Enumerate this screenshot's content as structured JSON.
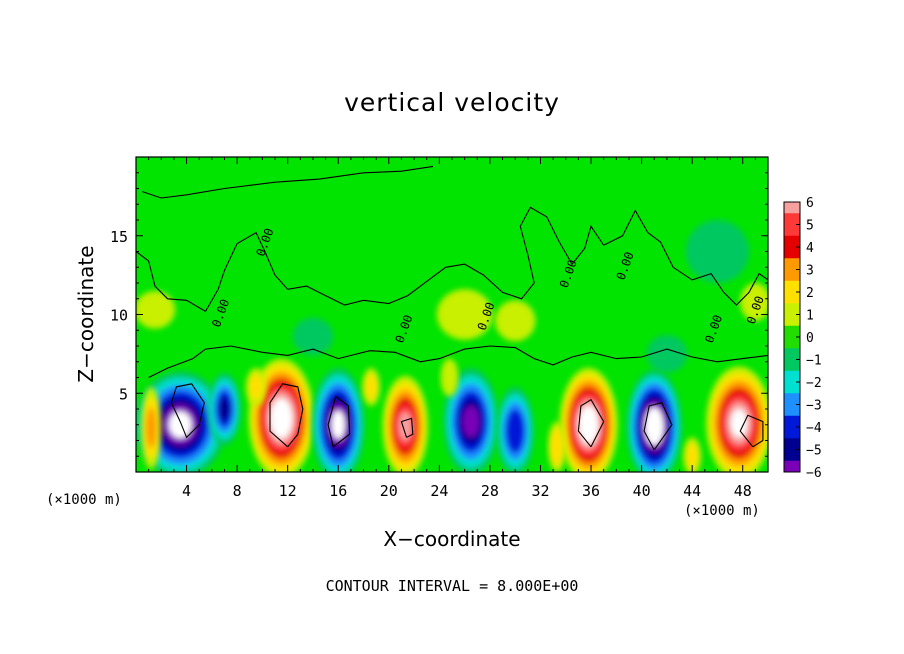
{
  "chart_data": {
    "type": "heatmap",
    "title": "vertical velocity",
    "xlabel": "X−coordinate",
    "ylabel": "Z−coordinate",
    "x_unit_label": "(×1000 m)",
    "x_unit_label_right": "(×1000 m)",
    "xlim": [
      0,
      50
    ],
    "ylim": [
      0,
      20
    ],
    "x_ticks": [
      4,
      8,
      12,
      16,
      20,
      24,
      28,
      32,
      36,
      40,
      44,
      48
    ],
    "y_ticks": [
      5,
      10,
      15
    ],
    "contour_label": "0.00",
    "contour_label_positions": [
      [
        10.5,
        14.5
      ],
      [
        7,
        10
      ],
      [
        21.5,
        9
      ],
      [
        28,
        9.8
      ],
      [
        34.5,
        12.5
      ],
      [
        39,
        13
      ],
      [
        46,
        9
      ],
      [
        49.3,
        10.2
      ]
    ],
    "colorbar": {
      "ticks": [
        6,
        5,
        4,
        3,
        2,
        1,
        0,
        -1,
        -2,
        -3,
        -4,
        -5,
        -6
      ],
      "colors": [
        "#f7a0a0",
        "#ff3838",
        "#e50000",
        "#ff9900",
        "#ffe000",
        "#c8f000",
        "#22dd00",
        "#00c860",
        "#00e0d0",
        "#1e90ff",
        "#0018d8",
        "#000090",
        "#7a00b8"
      ]
    },
    "field_background": "#00e400",
    "cells": [
      {
        "x": 3.5,
        "z": 3.0,
        "w": -7.0,
        "r": 3.6,
        "h": 3.4
      },
      {
        "x": 7.0,
        "z": 4.0,
        "w": -4.8,
        "r": 1.3,
        "h": 2.3
      },
      {
        "x": 11.5,
        "z": 3.4,
        "w": 8.0,
        "r": 2.6,
        "h": 3.8
      },
      {
        "x": 16.0,
        "z": 3.0,
        "w": -7.0,
        "r": 2.1,
        "h": 3.6
      },
      {
        "x": 21.3,
        "z": 2.9,
        "w": 6.0,
        "r": 1.8,
        "h": 3.2
      },
      {
        "x": 26.5,
        "z": 3.2,
        "w": -5.8,
        "r": 2.2,
        "h": 3.4
      },
      {
        "x": 30.0,
        "z": 2.6,
        "w": -4.2,
        "r": 1.5,
        "h": 2.8
      },
      {
        "x": 35.8,
        "z": 3.0,
        "w": 7.2,
        "r": 2.3,
        "h": 3.6
      },
      {
        "x": 41.0,
        "z": 2.9,
        "w": -7.2,
        "r": 2.2,
        "h": 3.6
      },
      {
        "x": 47.7,
        "z": 3.1,
        "w": 6.8,
        "r": 2.6,
        "h": 3.6
      },
      {
        "x": 1.2,
        "z": 2.8,
        "w": 2.6,
        "r": 0.8,
        "h": 2.6
      },
      {
        "x": 9.5,
        "z": 5.4,
        "w": 1.6,
        "r": 0.8,
        "h": 1.2
      },
      {
        "x": 18.6,
        "z": 5.4,
        "w": 2.0,
        "r": 0.7,
        "h": 1.2
      },
      {
        "x": 24.8,
        "z": 6.0,
        "w": 1.5,
        "r": 0.7,
        "h": 1.2
      },
      {
        "x": 33.3,
        "z": 1.6,
        "w": 2.5,
        "r": 0.7,
        "h": 1.6
      },
      {
        "x": 44.0,
        "z": 1.0,
        "w": 2.0,
        "r": 0.7,
        "h": 1.2
      },
      {
        "x": 1.5,
        "z": 10.3,
        "w": 1.5,
        "r": 1.6,
        "h": 1.2
      },
      {
        "x": 26.0,
        "z": 10.0,
        "w": 1.0,
        "r": 2.2,
        "h": 1.6
      },
      {
        "x": 30.0,
        "z": 9.6,
        "w": 1.1,
        "r": 1.6,
        "h": 1.3
      },
      {
        "x": 49.0,
        "z": 10.8,
        "w": 1.4,
        "r": 1.2,
        "h": 1.2
      },
      {
        "x": 46.0,
        "z": 14.0,
        "w": -0.8,
        "r": 2.5,
        "h": 2.0
      },
      {
        "x": 42.0,
        "z": 7.5,
        "w": -0.8,
        "r": 1.6,
        "h": 1.2
      },
      {
        "x": 14.0,
        "z": 8.6,
        "w": -0.6,
        "r": 1.6,
        "h": 1.2
      }
    ],
    "zero_contours": [
      [
        [
          1.0,
          6.0
        ],
        [
          2.5,
          6.6
        ],
        [
          4.5,
          7.2
        ],
        [
          5.5,
          7.8
        ],
        [
          7.5,
          8.0
        ],
        [
          10.0,
          7.6
        ],
        [
          12.0,
          7.4
        ],
        [
          14.0,
          7.8
        ],
        [
          16.0,
          7.2
        ],
        [
          18.5,
          7.7
        ],
        [
          20.5,
          7.6
        ],
        [
          22.5,
          7.0
        ],
        [
          24.0,
          7.2
        ],
        [
          26.0,
          7.8
        ],
        [
          28.0,
          8.0
        ],
        [
          30.0,
          7.9
        ],
        [
          31.5,
          7.2
        ],
        [
          33.0,
          6.8
        ],
        [
          34.5,
          7.3
        ],
        [
          36.0,
          7.6
        ],
        [
          38.0,
          7.2
        ],
        [
          40.0,
          7.3
        ],
        [
          42.0,
          7.8
        ],
        [
          44.0,
          7.3
        ],
        [
          46.0,
          7.0
        ],
        [
          48.0,
          7.2
        ],
        [
          50.0,
          7.4
        ]
      ],
      [
        [
          0.5,
          17.8
        ],
        [
          2.0,
          17.4
        ],
        [
          4.0,
          17.6
        ],
        [
          7.0,
          18.0
        ],
        [
          11.0,
          18.4
        ],
        [
          14.5,
          18.6
        ],
        [
          18.0,
          19.0
        ],
        [
          21.0,
          19.1
        ],
        [
          23.5,
          19.4
        ]
      ],
      [
        [
          5.5,
          10.2
        ],
        [
          6.5,
          11.6
        ],
        [
          7.0,
          12.8
        ],
        [
          8.0,
          14.5
        ],
        [
          9.5,
          15.2
        ],
        [
          10.2,
          14.0
        ],
        [
          11.0,
          12.5
        ],
        [
          12.0,
          11.6
        ],
        [
          13.5,
          11.8
        ],
        [
          15.0,
          11.2
        ],
        [
          16.5,
          10.6
        ],
        [
          18.0,
          10.9
        ],
        [
          20.0,
          10.7
        ],
        [
          21.5,
          11.2
        ],
        [
          23.0,
          12.1
        ],
        [
          24.5,
          13.0
        ],
        [
          26.0,
          13.2
        ],
        [
          27.5,
          12.5
        ],
        [
          29.0,
          11.4
        ],
        [
          30.5,
          11.0
        ],
        [
          31.5,
          12.0
        ],
        [
          31.0,
          13.8
        ],
        [
          30.4,
          15.6
        ],
        [
          31.2,
          16.8
        ],
        [
          32.5,
          16.2
        ],
        [
          33.5,
          14.6
        ],
        [
          34.5,
          13.2
        ],
        [
          35.5,
          14.2
        ],
        [
          36.0,
          15.6
        ],
        [
          37.0,
          14.4
        ],
        [
          38.5,
          15.0
        ],
        [
          39.5,
          16.6
        ],
        [
          40.5,
          15.2
        ],
        [
          41.5,
          14.6
        ],
        [
          42.5,
          13.0
        ],
        [
          44.0,
          12.2
        ],
        [
          45.5,
          12.6
        ],
        [
          46.5,
          11.4
        ],
        [
          47.5,
          10.6
        ],
        [
          48.5,
          11.4
        ],
        [
          49.3,
          12.6
        ],
        [
          50.0,
          12.2
        ]
      ],
      [
        [
          0.0,
          14.0
        ],
        [
          1.0,
          13.4
        ],
        [
          1.5,
          11.8
        ],
        [
          2.5,
          11.0
        ],
        [
          4.0,
          10.9
        ],
        [
          5.5,
          10.2
        ]
      ],
      [
        [
          3.5,
          3.2
        ],
        [
          2.8,
          4.4
        ],
        [
          3.2,
          5.4
        ],
        [
          4.4,
          5.6
        ],
        [
          5.4,
          4.4
        ],
        [
          5.0,
          3.0
        ],
        [
          4.0,
          2.2
        ],
        [
          3.5,
          3.2
        ]
      ],
      [
        [
          12.0,
          1.6
        ],
        [
          10.6,
          2.6
        ],
        [
          10.6,
          4.4
        ],
        [
          11.6,
          5.6
        ],
        [
          12.8,
          5.4
        ],
        [
          13.2,
          4.0
        ],
        [
          12.8,
          2.4
        ],
        [
          12.0,
          1.6
        ]
      ],
      [
        [
          15.6,
          1.6
        ],
        [
          15.2,
          3.0
        ],
        [
          15.8,
          4.8
        ],
        [
          16.8,
          4.2
        ],
        [
          16.9,
          2.4
        ],
        [
          15.6,
          1.6
        ]
      ],
      [
        [
          21.4,
          2.2
        ],
        [
          21.0,
          3.2
        ],
        [
          21.8,
          3.4
        ],
        [
          21.9,
          2.4
        ],
        [
          21.4,
          2.2
        ]
      ],
      [
        [
          36.0,
          1.6
        ],
        [
          35.0,
          2.6
        ],
        [
          35.2,
          4.2
        ],
        [
          36.0,
          4.6
        ],
        [
          37.0,
          3.2
        ],
        [
          36.0,
          1.6
        ]
      ],
      [
        [
          41.0,
          1.4
        ],
        [
          40.2,
          2.6
        ],
        [
          40.6,
          4.2
        ],
        [
          41.6,
          4.4
        ],
        [
          42.4,
          3.0
        ],
        [
          41.0,
          1.4
        ]
      ],
      [
        [
          48.8,
          1.6
        ],
        [
          47.8,
          2.6
        ],
        [
          48.4,
          3.6
        ],
        [
          49.6,
          3.2
        ],
        [
          49.6,
          2.0
        ],
        [
          48.8,
          1.6
        ]
      ]
    ],
    "footer": "CONTOUR INTERVAL = 8.000E+00"
  }
}
